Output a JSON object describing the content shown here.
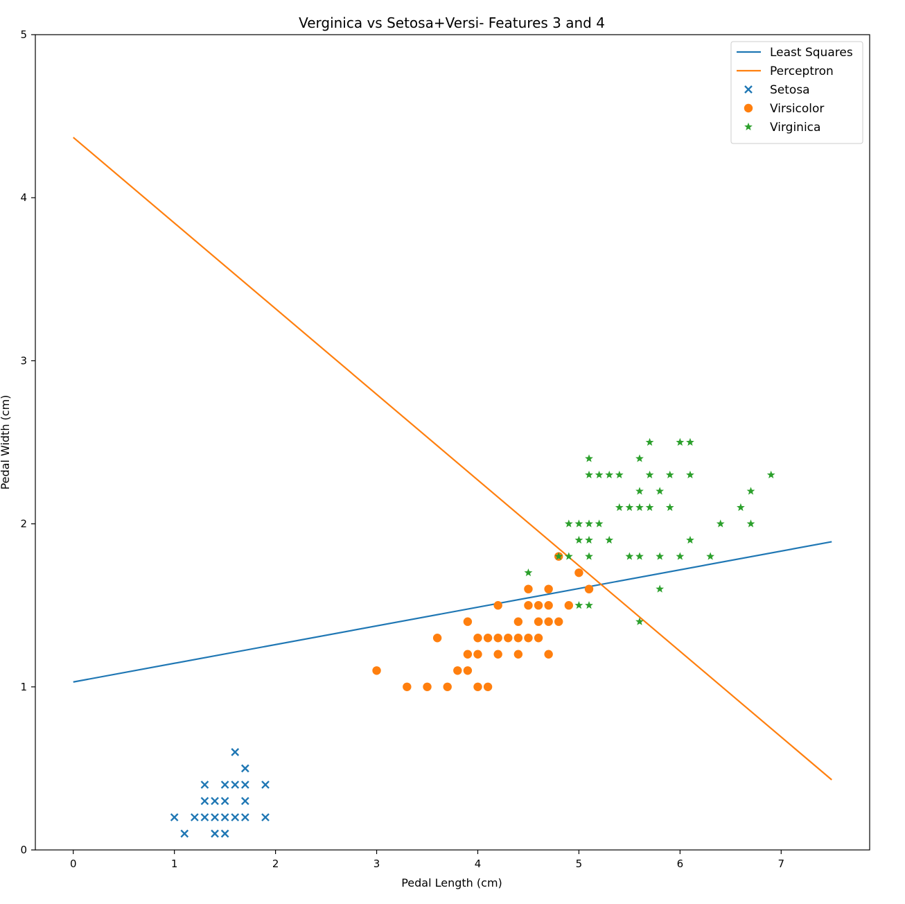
{
  "chart_data": {
    "type": "scatter",
    "title": "Verginica vs Setosa+Versi- Features 3 and 4",
    "xlabel": "Pedal Length (cm)",
    "ylabel": "Pedal Width (cm)",
    "xlim": [
      -0.375,
      7.875
    ],
    "ylim": [
      0,
      5
    ],
    "xticks": [
      0,
      1,
      2,
      3,
      4,
      5,
      6,
      7
    ],
    "yticks": [
      0,
      1,
      2,
      3,
      4,
      5
    ],
    "grid": false,
    "legend_position": "top-right",
    "lines": [
      {
        "name": "Least Squares",
        "color": "#1f77b4",
        "x": [
          0,
          7.5
        ],
        "y": [
          1.03,
          1.89
        ]
      },
      {
        "name": "Perceptron",
        "color": "#ff7f0e",
        "x": [
          0,
          7.5
        ],
        "y": [
          4.37,
          0.43
        ]
      }
    ],
    "series": [
      {
        "name": "Setosa",
        "marker": "x",
        "color": "#1f77b4",
        "points": [
          [
            1.0,
            0.2
          ],
          [
            1.1,
            0.1
          ],
          [
            1.2,
            0.2
          ],
          [
            1.3,
            0.2
          ],
          [
            1.3,
            0.3
          ],
          [
            1.3,
            0.4
          ],
          [
            1.4,
            0.1
          ],
          [
            1.4,
            0.2
          ],
          [
            1.4,
            0.3
          ],
          [
            1.5,
            0.1
          ],
          [
            1.5,
            0.2
          ],
          [
            1.5,
            0.3
          ],
          [
            1.5,
            0.4
          ],
          [
            1.6,
            0.2
          ],
          [
            1.6,
            0.4
          ],
          [
            1.6,
            0.6
          ],
          [
            1.7,
            0.2
          ],
          [
            1.7,
            0.3
          ],
          [
            1.7,
            0.4
          ],
          [
            1.7,
            0.5
          ],
          [
            1.9,
            0.2
          ],
          [
            1.9,
            0.4
          ]
        ]
      },
      {
        "name": "Virsicolor",
        "marker": "o",
        "color": "#ff7f0e",
        "points": [
          [
            3.0,
            1.1
          ],
          [
            3.3,
            1.0
          ],
          [
            3.5,
            1.0
          ],
          [
            3.6,
            1.3
          ],
          [
            3.7,
            1.0
          ],
          [
            3.8,
            1.1
          ],
          [
            3.9,
            1.1
          ],
          [
            3.9,
            1.2
          ],
          [
            3.9,
            1.4
          ],
          [
            4.0,
            1.0
          ],
          [
            4.0,
            1.2
          ],
          [
            4.0,
            1.3
          ],
          [
            4.1,
            1.0
          ],
          [
            4.1,
            1.3
          ],
          [
            4.2,
            1.2
          ],
          [
            4.2,
            1.3
          ],
          [
            4.2,
            1.5
          ],
          [
            4.3,
            1.3
          ],
          [
            4.4,
            1.2
          ],
          [
            4.4,
            1.3
          ],
          [
            4.4,
            1.4
          ],
          [
            4.5,
            1.3
          ],
          [
            4.5,
            1.5
          ],
          [
            4.5,
            1.6
          ],
          [
            4.6,
            1.3
          ],
          [
            4.6,
            1.4
          ],
          [
            4.6,
            1.5
          ],
          [
            4.7,
            1.2
          ],
          [
            4.7,
            1.4
          ],
          [
            4.7,
            1.5
          ],
          [
            4.7,
            1.6
          ],
          [
            4.8,
            1.4
          ],
          [
            4.8,
            1.8
          ],
          [
            4.9,
            1.5
          ],
          [
            5.0,
            1.7
          ],
          [
            5.1,
            1.6
          ]
        ]
      },
      {
        "name": "Virginica",
        "marker": "*",
        "color": "#2ca02c",
        "points": [
          [
            4.5,
            1.7
          ],
          [
            4.8,
            1.8
          ],
          [
            4.9,
            1.8
          ],
          [
            4.9,
            2.0
          ],
          [
            5.0,
            1.5
          ],
          [
            5.0,
            1.9
          ],
          [
            5.0,
            2.0
          ],
          [
            5.1,
            1.5
          ],
          [
            5.1,
            1.8
          ],
          [
            5.1,
            1.9
          ],
          [
            5.1,
            2.0
          ],
          [
            5.1,
            2.3
          ],
          [
            5.1,
            2.4
          ],
          [
            5.2,
            2.0
          ],
          [
            5.2,
            2.3
          ],
          [
            5.3,
            1.9
          ],
          [
            5.3,
            2.3
          ],
          [
            5.4,
            2.1
          ],
          [
            5.4,
            2.3
          ],
          [
            5.5,
            1.8
          ],
          [
            5.5,
            2.1
          ],
          [
            5.6,
            1.4
          ],
          [
            5.6,
            1.8
          ],
          [
            5.6,
            2.1
          ],
          [
            5.6,
            2.2
          ],
          [
            5.6,
            2.4
          ],
          [
            5.7,
            2.1
          ],
          [
            5.7,
            2.3
          ],
          [
            5.7,
            2.5
          ],
          [
            5.8,
            1.6
          ],
          [
            5.8,
            1.8
          ],
          [
            5.8,
            2.2
          ],
          [
            5.9,
            2.1
          ],
          [
            5.9,
            2.3
          ],
          [
            6.0,
            1.8
          ],
          [
            6.0,
            2.5
          ],
          [
            6.1,
            1.9
          ],
          [
            6.1,
            2.3
          ],
          [
            6.1,
            2.5
          ],
          [
            6.3,
            1.8
          ],
          [
            6.4,
            2.0
          ],
          [
            6.6,
            2.1
          ],
          [
            6.7,
            2.0
          ],
          [
            6.7,
            2.2
          ],
          [
            6.9,
            2.3
          ]
        ]
      }
    ]
  }
}
